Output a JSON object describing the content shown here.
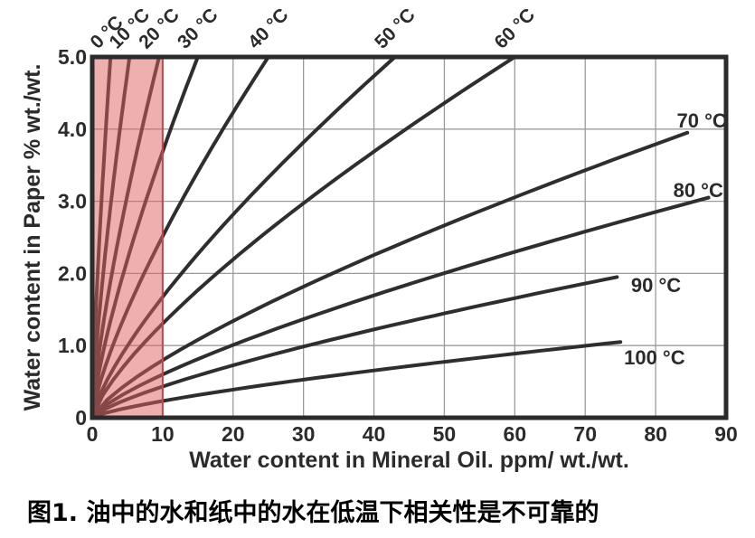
{
  "figure": {
    "caption": "图1. 油中的水和纸中的水在低温下相关性是不可靠的"
  },
  "chart_data": {
    "type": "line",
    "title": "",
    "xlabel": "Water content in Mineral Oil. ppm/ wt./wt.",
    "ylabel": "Water content in Paper % wt./wt.",
    "xlim": [
      0,
      90
    ],
    "ylim": [
      0,
      5.0
    ],
    "xticks": [
      "0",
      "10",
      "20",
      "30",
      "40",
      "50",
      "60",
      "70",
      "80",
      "90"
    ],
    "yticks": [
      "0",
      "1.0",
      "2.0",
      "3.0",
      "4.0",
      "5.0"
    ],
    "grid": true,
    "curve_shape_exponent": 0.75,
    "series": [
      {
        "name": "0 °C",
        "temperature_c": 0,
        "start": [
          0,
          0
        ],
        "end": [
          2.6,
          5.0
        ],
        "label_side": "top",
        "label_xy": [
          0.8,
          5.1
        ]
      },
      {
        "name": "10 °C",
        "temperature_c": 10,
        "start": [
          0,
          0
        ],
        "end": [
          5.3,
          5.0
        ],
        "label_side": "top",
        "label_xy": [
          3.5,
          5.1
        ]
      },
      {
        "name": "20 °C",
        "temperature_c": 20,
        "start": [
          0,
          0
        ],
        "end": [
          9.5,
          5.0
        ],
        "label_side": "top",
        "label_xy": [
          7.7,
          5.1
        ]
      },
      {
        "name": "30 °C",
        "temperature_c": 30,
        "start": [
          0,
          0
        ],
        "end": [
          15,
          5.0
        ],
        "label_side": "top",
        "label_xy": [
          13.2,
          5.1
        ]
      },
      {
        "name": "40 °C",
        "temperature_c": 40,
        "start": [
          0,
          0
        ],
        "end": [
          25,
          5.0
        ],
        "label_side": "top",
        "label_xy": [
          23.2,
          5.1
        ]
      },
      {
        "name": "50 °C",
        "temperature_c": 50,
        "start": [
          0,
          0
        ],
        "end": [
          43,
          5.0
        ],
        "label_side": "top",
        "label_xy": [
          41.2,
          5.1
        ]
      },
      {
        "name": "60 °C",
        "temperature_c": 60,
        "start": [
          0,
          0
        ],
        "end": [
          60,
          5.0
        ],
        "label_side": "top",
        "label_xy": [
          58.2,
          5.1
        ]
      },
      {
        "name": "70 °C",
        "temperature_c": 70,
        "start": [
          0,
          0
        ],
        "end": [
          84.5,
          3.95
        ],
        "label_side": "right",
        "label_xy": [
          83.0,
          4.02
        ]
      },
      {
        "name": "80 °C",
        "temperature_c": 80,
        "start": [
          0,
          0
        ],
        "end": [
          87.5,
          3.05
        ],
        "label_side": "right",
        "label_xy": [
          82.5,
          3.06
        ]
      },
      {
        "name": "90 °C",
        "temperature_c": 90,
        "start": [
          0,
          0
        ],
        "end": [
          74.5,
          1.95
        ],
        "label_side": "right",
        "label_xy": [
          76.5,
          1.74
        ]
      },
      {
        "name": "100 °C",
        "temperature_c": 100,
        "start": [
          0,
          0
        ],
        "end": [
          75,
          1.05
        ],
        "label_side": "right",
        "label_xy": [
          75.5,
          0.74
        ]
      }
    ],
    "highlight_region": {
      "x_range": [
        0,
        10
      ],
      "fill": "#DE6060",
      "opacity": 0.5,
      "border_color": "#B84A4A"
    },
    "colors": {
      "curve": "#2E2E2E",
      "grid": "#9B9B9B",
      "frame": "#2B2B2B",
      "text": "#2B2B2B",
      "caption": "#000000"
    }
  }
}
